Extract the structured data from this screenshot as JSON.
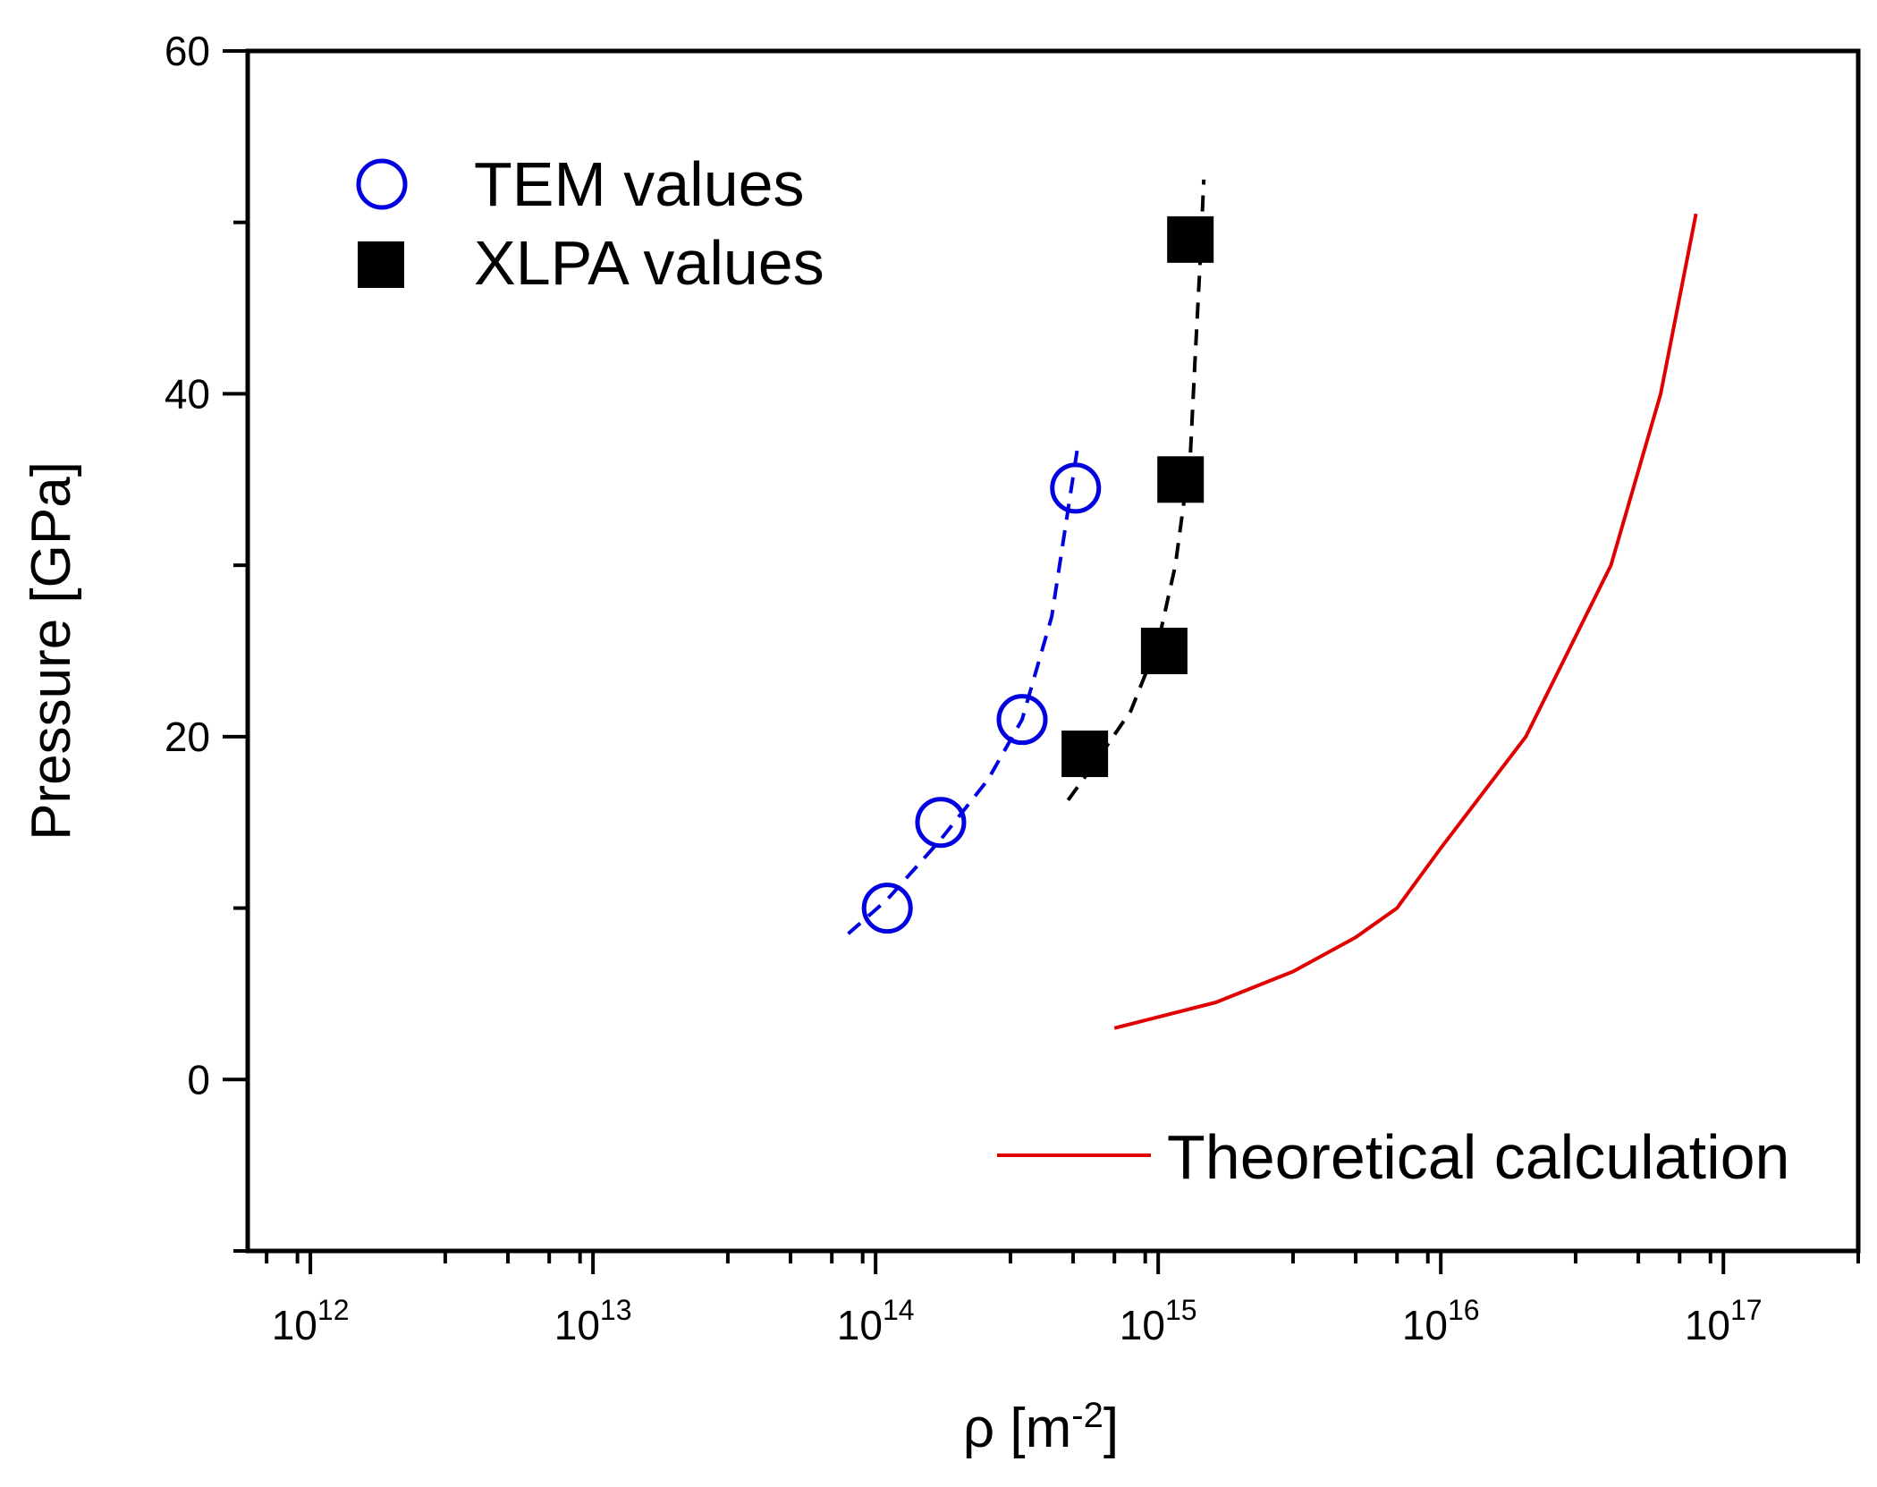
{
  "chart_data": {
    "type": "scatter",
    "xlabel": "ρ [m⁻²]",
    "xlabel_main": "ρ [m",
    "xlabel_sup": "-2",
    "xlabel_end": "]",
    "ylabel": "Pressure [GPa]",
    "x_scale": "log",
    "xlim": [
      600000000000.0,
      3e+17
    ],
    "ylim": [
      -10,
      60
    ],
    "y_ticks": [
      0,
      20,
      40,
      60
    ],
    "y_tick_labels": [
      "0",
      "20",
      "40",
      "60"
    ],
    "x_ticks": [
      1000000000000.0,
      10000000000000.0,
      100000000000000.0,
      1000000000000000.0,
      1e+16,
      1e+17
    ],
    "x_tick_labels": [
      {
        "base": "10",
        "exp": "12"
      },
      {
        "base": "10",
        "exp": "13"
      },
      {
        "base": "10",
        "exp": "14"
      },
      {
        "base": "10",
        "exp": "15"
      },
      {
        "base": "10",
        "exp": "16"
      },
      {
        "base": "10",
        "exp": "17"
      }
    ],
    "grid": false,
    "legend": [
      {
        "label": "TEM values",
        "series": "TEM values",
        "position": "top-left"
      },
      {
        "label": "XLPA values",
        "series": "XLPA values",
        "position": "top-left"
      },
      {
        "label": "Theoretical calculation",
        "series": "Theoretical calculation",
        "position": "bottom-right"
      }
    ],
    "series": [
      {
        "name": "TEM values",
        "marker": "open-circle",
        "color": "#0000e0",
        "x": [
          110000000000000.0,
          170000000000000.0,
          330000000000000.0,
          510000000000000.0
        ],
        "y": [
          10,
          15,
          21,
          34.5
        ]
      },
      {
        "name": "XLPA values",
        "marker": "filled-square",
        "color": "#000000",
        "x": [
          550000000000000.0,
          1050000000000000.0,
          1200000000000000.0,
          1300000000000000.0
        ],
        "y": [
          19,
          25,
          35,
          49
        ]
      },
      {
        "name": "TEM fit",
        "style": "dashed",
        "color": "#0000e0",
        "x": [
          80000000000000.0,
          110000000000000.0,
          170000000000000.0,
          250000000000000.0,
          330000000000000.0,
          420000000000000.0,
          520000000000000.0
        ],
        "y": [
          8.5,
          10.5,
          14,
          17.5,
          21,
          27,
          37
        ]
      },
      {
        "name": "XLPA fit",
        "style": "dashed",
        "color": "#000000",
        "x": [
          480000000000000.0,
          600000000000000.0,
          800000000000000.0,
          1000000000000000.0,
          1150000000000000.0,
          1300000000000000.0,
          1350000000000000.0,
          1400000000000000.0,
          1450000000000000.0
        ],
        "y": [
          16.3,
          18.5,
          21.5,
          25.5,
          30,
          36.5,
          42,
          47,
          52.5
        ]
      },
      {
        "name": "Theoretical calculation",
        "style": "solid",
        "color": "#e00000",
        "x": [
          700000000000000.0,
          1600000000000000.0,
          3000000000000000.0,
          5000000000000000.0,
          7000000000000000.0,
          1e+16,
          2e+16,
          4e+16,
          6e+16,
          8e+16
        ],
        "y": [
          3,
          4.5,
          6.3,
          8.3,
          10,
          13.5,
          20,
          30,
          40,
          50.5
        ]
      }
    ]
  }
}
